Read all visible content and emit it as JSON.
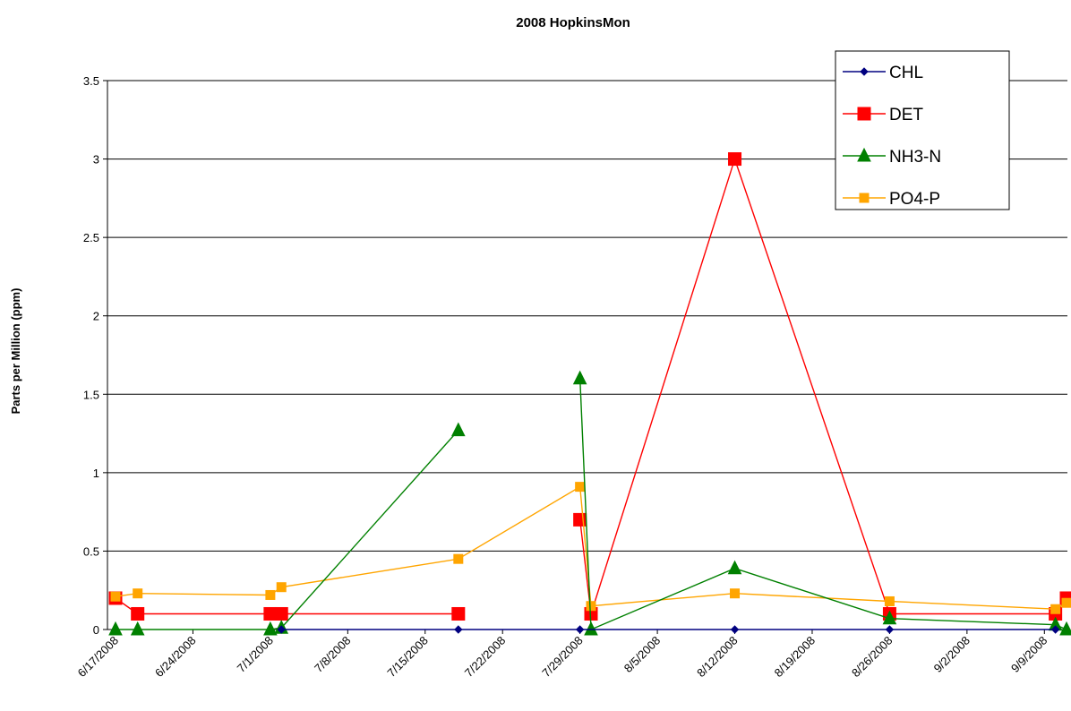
{
  "chart_data": {
    "type": "line",
    "title": "2008 HopkinsMon",
    "ylabel": "Parts per Million (ppm)",
    "xlabel": "",
    "ylim": [
      0,
      3.5
    ],
    "yticks": [
      "0",
      "0.5",
      "1",
      "1.5",
      "2",
      "2.5",
      "3",
      "3.5"
    ],
    "xticks": [
      "6/17/2008",
      "6/24/2008",
      "7/1/2008",
      "7/8/2008",
      "7/15/2008",
      "7/22/2008",
      "7/29/2008",
      "8/5/2008",
      "8/12/2008",
      "8/19/2008",
      "8/26/2008",
      "9/2/2008",
      "9/9/2008"
    ],
    "xlim": [
      "2008-06-17",
      "2008-09-11"
    ],
    "grid": "horizontal",
    "legend_position": "top-right",
    "series": [
      {
        "name": "CHL",
        "color": "#000080",
        "marker": "diamond",
        "points": [
          {
            "x": "2008-07-02",
            "y": 0
          },
          {
            "x": "2008-07-18",
            "y": 0
          },
          {
            "x": "2008-07-29",
            "y": 0
          },
          {
            "x": "2008-08-12",
            "y": 0
          },
          {
            "x": "2008-08-26",
            "y": 0
          },
          {
            "x": "2008-09-10",
            "y": 0
          }
        ]
      },
      {
        "name": "DET",
        "color": "#ff0000",
        "marker": "square",
        "points": [
          [
            {
              "x": "2008-06-17",
              "y": 0.2
            },
            {
              "x": "2008-06-19",
              "y": 0.1
            },
            {
              "x": "2008-07-01",
              "y": 0.1
            },
            {
              "x": "2008-07-02",
              "y": 0.1
            },
            {
              "x": "2008-07-18",
              "y": 0.1
            }
          ],
          [
            {
              "x": "2008-07-29",
              "y": 0.7
            },
            {
              "x": "2008-07-30",
              "y": 0.1
            },
            {
              "x": "2008-08-12",
              "y": 3.0
            },
            {
              "x": "2008-08-26",
              "y": 0.1
            },
            {
              "x": "2008-09-10",
              "y": 0.1
            },
            {
              "x": "2008-09-11",
              "y": 0.2
            }
          ]
        ]
      },
      {
        "name": "NH3-N",
        "color": "#008000",
        "marker": "triangle",
        "points": [
          [
            {
              "x": "2008-06-17",
              "y": 0
            },
            {
              "x": "2008-06-19",
              "y": 0
            },
            {
              "x": "2008-07-01",
              "y": 0
            },
            {
              "x": "2008-07-02",
              "y": 0.01
            },
            {
              "x": "2008-07-18",
              "y": 1.27
            }
          ],
          [
            {
              "x": "2008-07-29",
              "y": 1.6
            },
            {
              "x": "2008-07-30",
              "y": 0
            },
            {
              "x": "2008-08-12",
              "y": 0.39
            },
            {
              "x": "2008-08-26",
              "y": 0.07
            },
            {
              "x": "2008-09-10",
              "y": 0.03
            },
            {
              "x": "2008-09-11",
              "y": 0
            }
          ]
        ]
      },
      {
        "name": "PO4-P",
        "color": "#ffa500",
        "marker": "square-small",
        "points": [
          [
            {
              "x": "2008-06-17",
              "y": 0.21
            },
            {
              "x": "2008-06-19",
              "y": 0.23
            },
            {
              "x": "2008-07-01",
              "y": 0.22
            },
            {
              "x": "2008-07-02",
              "y": 0.27
            },
            {
              "x": "2008-07-18",
              "y": 0.45
            },
            {
              "x": "2008-07-29",
              "y": 0.91
            },
            {
              "x": "2008-07-30",
              "y": 0.15
            },
            {
              "x": "2008-08-12",
              "y": 0.23
            },
            {
              "x": "2008-08-26",
              "y": 0.18
            },
            {
              "x": "2008-09-10",
              "y": 0.13
            },
            {
              "x": "2008-09-11",
              "y": 0.17
            }
          ]
        ]
      }
    ]
  }
}
